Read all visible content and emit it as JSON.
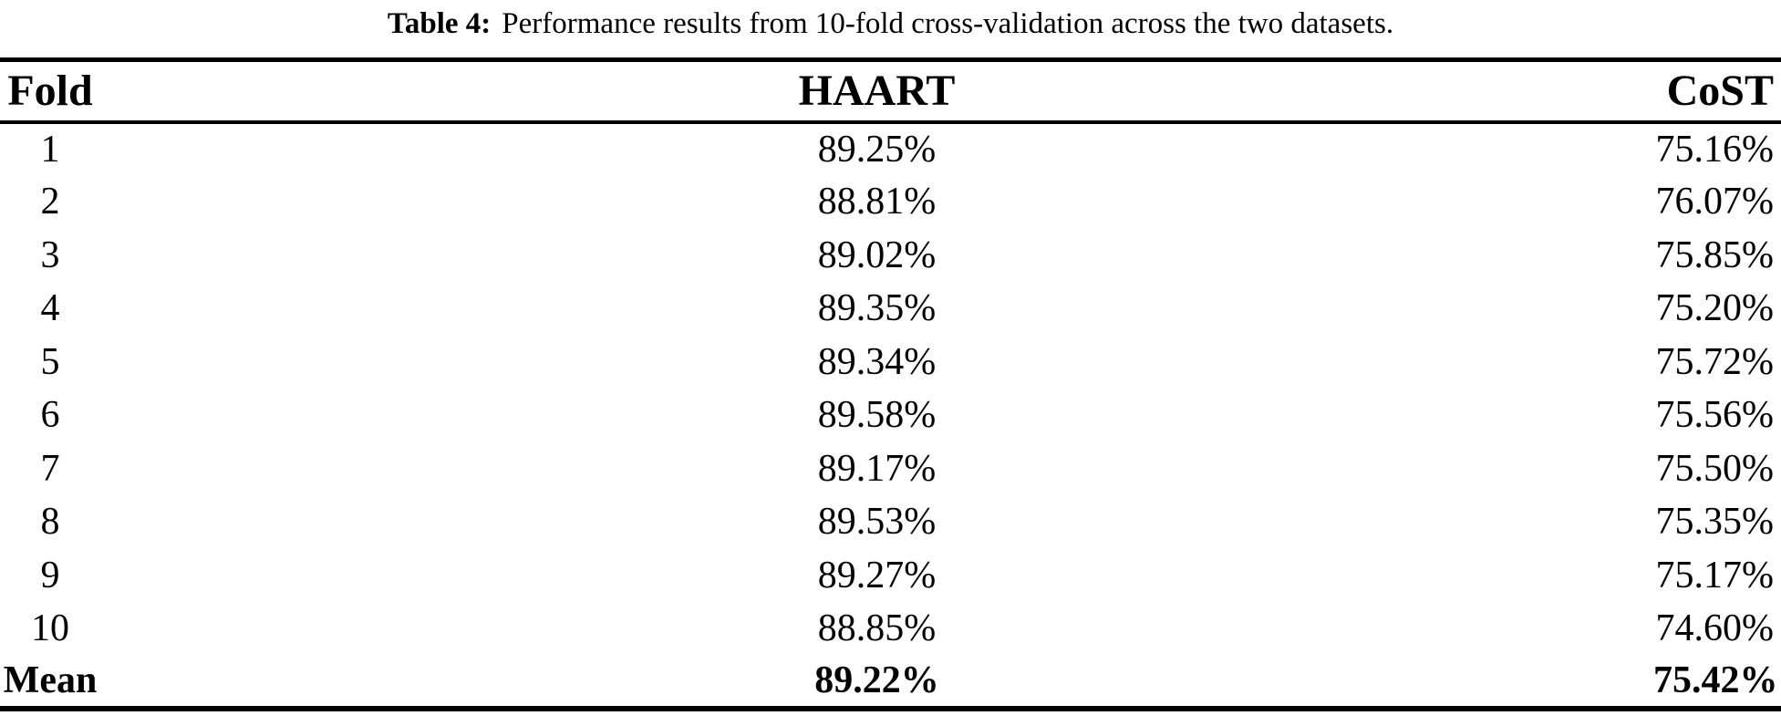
{
  "caption": {
    "label": "Table 4:",
    "text": "Performance results from 10-fold cross-validation across the two datasets."
  },
  "chart_data": {
    "type": "table",
    "columns": [
      "Fold",
      "HAART",
      "CoST"
    ],
    "rows": [
      [
        "1",
        "89.25%",
        "75.16%"
      ],
      [
        "2",
        "88.81%",
        "76.07%"
      ],
      [
        "3",
        "89.02%",
        "75.85%"
      ],
      [
        "4",
        "89.35%",
        "75.20%"
      ],
      [
        "5",
        "89.34%",
        "75.72%"
      ],
      [
        "6",
        "89.58%",
        "75.56%"
      ],
      [
        "7",
        "89.17%",
        "75.50%"
      ],
      [
        "8",
        "89.53%",
        "75.35%"
      ],
      [
        "9",
        "89.27%",
        "75.17%"
      ],
      [
        "10",
        "88.85%",
        "74.60%"
      ]
    ],
    "mean_row": [
      "Mean",
      "89.22%",
      "75.42%"
    ],
    "title": "Performance results from 10-fold cross-validation across the two datasets"
  },
  "colors": {
    "text": "#000000",
    "background": "#ffffff",
    "rule": "#000000"
  }
}
